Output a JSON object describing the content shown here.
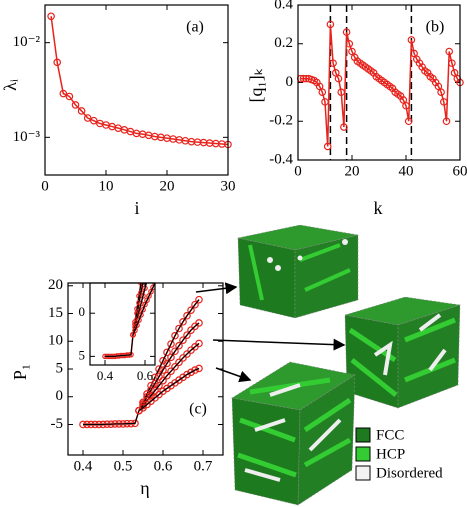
{
  "chart_data": [
    {
      "type": "line",
      "panel_label": "(a)",
      "x_label": "i",
      "y_label": "λᵢ",
      "log_y": true,
      "xlim": [
        0,
        30
      ],
      "xticks": [
        0,
        10,
        20,
        30
      ],
      "ylim": [
        0.0004,
        0.025
      ],
      "yticks": [
        {
          "value": 0.01,
          "label": "10⁻²"
        },
        {
          "value": 0.001,
          "label": "10⁻³"
        }
      ],
      "series": [
        {
          "color": "#e8231c",
          "x": [
            1,
            2,
            3,
            4,
            5,
            6,
            7,
            8,
            9,
            10,
            11,
            12,
            13,
            14,
            15,
            16,
            17,
            18,
            19,
            20,
            21,
            22,
            23,
            24,
            25,
            26,
            27,
            28,
            29,
            30
          ],
          "values": [
            0.019,
            0.0062,
            0.0029,
            0.0027,
            0.0022,
            0.0019,
            0.0016,
            0.0015,
            0.0014,
            0.00135,
            0.0013,
            0.00125,
            0.0012,
            0.00115,
            0.0011,
            0.00108,
            0.00105,
            0.00102,
            0.001,
            0.00098,
            0.00096,
            0.00094,
            0.00092,
            0.0009,
            0.00089,
            0.00088,
            0.00087,
            0.00086,
            0.00085,
            0.00084
          ]
        }
      ]
    },
    {
      "type": "line",
      "panel_label": "(b)",
      "x_label": "k",
      "y_label": "[q₁]ₖ",
      "xlim": [
        0,
        60
      ],
      "xticks": [
        0,
        20,
        40,
        60
      ],
      "ylim": [
        -0.4,
        0.4
      ],
      "yticks": [
        -0.4,
        -0.2,
        0,
        0.2,
        0.4
      ],
      "vlines": [
        12,
        18,
        42
      ],
      "series": [
        {
          "color": "#e8231c",
          "x": [
            1,
            2,
            3,
            4,
            5,
            6,
            7,
            8,
            9,
            10,
            11,
            12,
            13,
            14,
            15,
            16,
            17,
            18,
            19,
            20,
            21,
            22,
            23,
            24,
            25,
            26,
            27,
            28,
            29,
            30,
            31,
            32,
            33,
            34,
            35,
            36,
            37,
            38,
            39,
            40,
            41,
            42,
            43,
            44,
            45,
            46,
            47,
            48,
            49,
            50,
            51,
            52,
            53,
            54,
            55,
            56,
            57,
            58,
            59,
            60
          ],
          "values": [
            0.02,
            0.02,
            0.02,
            0.02,
            0.015,
            0.01,
            0.0,
            -0.02,
            -0.05,
            -0.1,
            -0.33,
            0.3,
            0.1,
            0.05,
            0.02,
            -0.05,
            -0.23,
            0.26,
            0.2,
            0.16,
            0.13,
            0.11,
            0.1,
            0.09,
            0.08,
            0.07,
            0.06,
            0.05,
            0.03,
            0.02,
            0.01,
            0.0,
            -0.01,
            -0.02,
            -0.03,
            -0.05,
            -0.06,
            -0.07,
            -0.09,
            -0.12,
            -0.2,
            0.22,
            0.15,
            0.12,
            0.1,
            0.08,
            0.06,
            0.05,
            0.03,
            0.02,
            0.0,
            -0.02,
            -0.05,
            -0.1,
            -0.2,
            0.16,
            0.1,
            0.05,
            0.02,
            0.0
          ]
        }
      ]
    },
    {
      "type": "scatter",
      "panel_label": "(c)",
      "x_label": "η",
      "y_label": "P₁",
      "line_color": "#000000",
      "xlim": [
        0.3625,
        0.75
      ],
      "xticks": [
        0.4,
        0.5,
        0.6,
        0.7
      ],
      "ylim": [
        -10.5,
        20.5
      ],
      "yticks": [
        -5,
        0,
        5,
        10,
        15,
        20
      ],
      "series": [
        {
          "color": "#e8231c",
          "x": [
            0.4,
            0.41,
            0.42,
            0.43,
            0.44,
            0.45,
            0.46,
            0.47,
            0.48,
            0.49,
            0.5,
            0.51,
            0.52,
            0.53,
            0.54
          ],
          "values": [
            -5,
            -5,
            -5,
            -5,
            -5,
            -5,
            -4.95,
            -4.95,
            -4.9,
            -4.9,
            -4.9,
            -4.85,
            -4.85,
            -4.8,
            -2.5
          ]
        },
        {
          "color": "#e8231c",
          "x": [
            0.54,
            0.55,
            0.56,
            0.57,
            0.58,
            0.59,
            0.6,
            0.61,
            0.62,
            0.63,
            0.64,
            0.65,
            0.66,
            0.67,
            0.68,
            0.69
          ],
          "values": [
            -2.5,
            -1,
            0.5,
            2,
            3.5,
            5,
            6.5,
            8,
            9.5,
            11,
            12.3,
            13.5,
            14.6,
            15.6,
            16.6,
            17.5
          ]
        },
        {
          "color": "#e8231c",
          "x": [
            0.54,
            0.55,
            0.56,
            0.57,
            0.58,
            0.59,
            0.6,
            0.61,
            0.62,
            0.63,
            0.64,
            0.65,
            0.66,
            0.67,
            0.68,
            0.69
          ],
          "values": [
            -2.5,
            -1.3,
            0,
            1.2,
            2.4,
            3.6,
            4.8,
            6,
            7.1,
            8.2,
            9.2,
            10.2,
            11.1,
            12,
            12.7,
            13.3
          ]
        },
        {
          "color": "#e8231c",
          "x": [
            0.54,
            0.55,
            0.56,
            0.57,
            0.58,
            0.59,
            0.6,
            0.61,
            0.62,
            0.63,
            0.64,
            0.65,
            0.66,
            0.67,
            0.68,
            0.69
          ],
          "values": [
            -2.5,
            -1.6,
            -0.7,
            0.2,
            1.1,
            2,
            2.9,
            3.8,
            4.6,
            5.4,
            6.2,
            7,
            7.7,
            8.4,
            9,
            9.6
          ]
        },
        {
          "color": "#e8231c",
          "x": [
            0.54,
            0.55,
            0.56,
            0.57,
            0.58,
            0.59,
            0.6,
            0.61,
            0.62,
            0.63,
            0.64,
            0.65,
            0.66,
            0.67,
            0.68,
            0.69
          ],
          "values": [
            -2.5,
            -2,
            -1.4,
            -0.8,
            -0.2,
            0.4,
            1,
            1.5,
            2,
            2.5,
            3,
            3.5,
            4,
            4.4,
            4.8,
            5.1
          ]
        }
      ],
      "inset": {
        "xlim": [
          0.325,
          0.65
        ],
        "xticks": [
          0.4,
          0.6
        ],
        "ylim": [
          -6,
          3.5
        ],
        "yticks": [
          0,
          {
            "value": -5,
            "label": "5"
          }
        ]
      },
      "legend": [
        {
          "label": "FCC",
          "color": "#1e7a1e"
        },
        {
          "label": "HCP",
          "color": "#33cc33"
        },
        {
          "label": "Disordered",
          "color": "#f2f2f2"
        }
      ]
    }
  ]
}
